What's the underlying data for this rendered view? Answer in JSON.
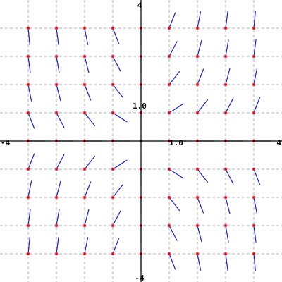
{
  "chart_data": {
    "type": "direction_field",
    "title": "",
    "xlabel": "",
    "ylabel": "",
    "xlim": [
      -4,
      4
    ],
    "ylim": [
      -4,
      4
    ],
    "grid": true,
    "grid_step": 0.8,
    "sample_step": 0.8,
    "x_tick_labels": [
      {
        "value": -4,
        "text": "-4"
      },
      {
        "value": 1,
        "text": "1.0"
      },
      {
        "value": 4,
        "text": "4"
      }
    ],
    "y_tick_labels": [
      {
        "value": 4,
        "text": "4"
      },
      {
        "value": 1,
        "text": "1.0"
      },
      {
        "value": -4,
        "text": "-4"
      }
    ],
    "point_color": "#e8202a",
    "segment_color": "#1f1fbf",
    "grid_color": "#b0b0b0",
    "axis_color": "#000000"
  }
}
